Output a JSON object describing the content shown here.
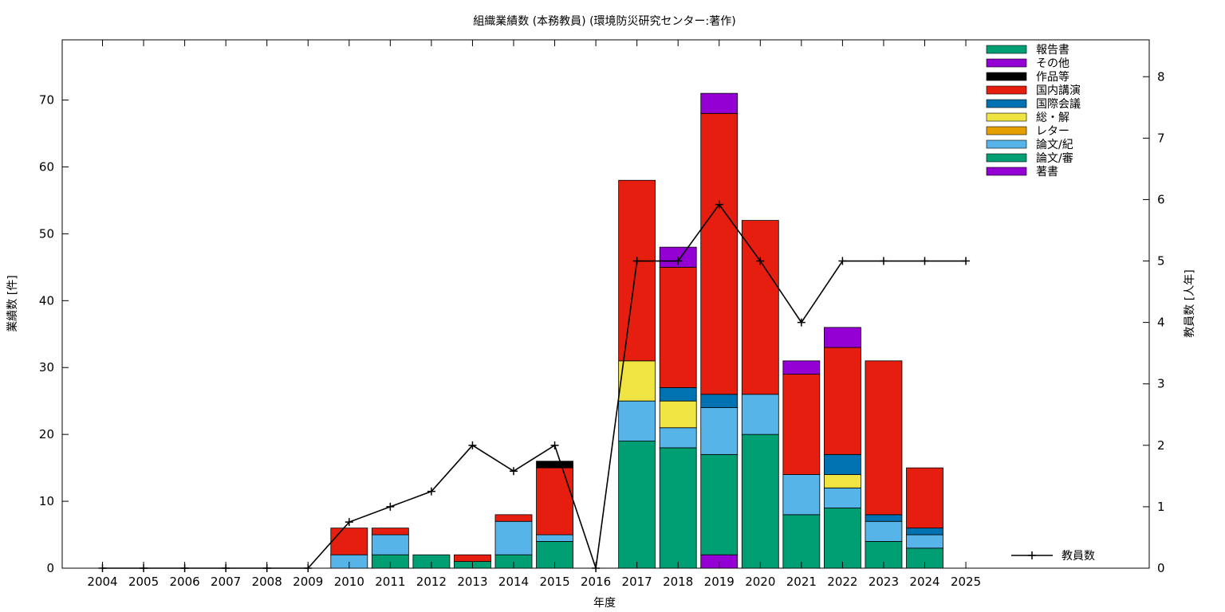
{
  "chart_data": {
    "type": "bar",
    "title": "組織業績数 (本務教員) (環境防災研究センター:著作)",
    "xlabel": "年度",
    "ylabel": "業績数 [件]",
    "y2label": "教員数 [人年]",
    "ylim": [
      0,
      79
    ],
    "y2lim": [
      0,
      8.6
    ],
    "yticks": [
      "0",
      "10",
      "20",
      "30",
      "40",
      "50",
      "60",
      "70"
    ],
    "y2ticks": [
      "0",
      "1",
      "2",
      "3",
      "4",
      "5",
      "6",
      "7",
      "8"
    ],
    "grid": false,
    "legend_position": "top-right",
    "categories": [
      "2004",
      "2005",
      "2006",
      "2007",
      "2008",
      "2009",
      "2010",
      "2011",
      "2012",
      "2013",
      "2014",
      "2015",
      "2016",
      "2017",
      "2018",
      "2019",
      "2020",
      "2021",
      "2022",
      "2023",
      "2024",
      "2025"
    ],
    "series": [
      {
        "name": "著書",
        "color": "#9400d3",
        "values": [
          0,
          0,
          0,
          0,
          0,
          0,
          0,
          0,
          0,
          0,
          0,
          0,
          0,
          0,
          0,
          2,
          0,
          0,
          0,
          0,
          0,
          0
        ]
      },
      {
        "name": "論文/審",
        "color": "#009e73",
        "values": [
          0,
          0,
          0,
          0,
          0,
          0,
          0,
          2,
          2,
          1,
          2,
          4,
          0,
          19,
          18,
          15,
          20,
          8,
          9,
          4,
          3,
          0
        ]
      },
      {
        "name": "論文/紀",
        "color": "#56b4e9",
        "values": [
          0,
          0,
          0,
          0,
          0,
          0,
          2,
          3,
          0,
          0,
          5,
          1,
          0,
          6,
          3,
          7,
          6,
          6,
          3,
          3,
          2,
          0
        ]
      },
      {
        "name": "レター",
        "color": "#e69f00",
        "values": [
          0,
          0,
          0,
          0,
          0,
          0,
          0,
          0,
          0,
          0,
          0,
          0,
          0,
          0,
          0,
          0,
          0,
          0,
          0,
          0,
          0,
          0
        ]
      },
      {
        "name": "総・解",
        "color": "#f0e442",
        "values": [
          0,
          0,
          0,
          0,
          0,
          0,
          0,
          0,
          0,
          0,
          0,
          0,
          0,
          6,
          4,
          0,
          0,
          0,
          2,
          0,
          0,
          0
        ]
      },
      {
        "name": "国際会議",
        "color": "#0072b2",
        "values": [
          0,
          0,
          0,
          0,
          0,
          0,
          0,
          0,
          0,
          0,
          0,
          0,
          0,
          0,
          2,
          2,
          0,
          0,
          3,
          1,
          1,
          0
        ]
      },
      {
        "name": "国内講演",
        "color": "#e51e10",
        "values": [
          0,
          0,
          0,
          0,
          0,
          0,
          4,
          1,
          0,
          1,
          1,
          10,
          0,
          27,
          18,
          42,
          26,
          15,
          16,
          23,
          9,
          0
        ]
      },
      {
        "name": "作品等",
        "color": "#000000",
        "values": [
          0,
          0,
          0,
          0,
          0,
          0,
          0,
          0,
          0,
          0,
          0,
          1,
          0,
          0,
          0,
          0,
          0,
          0,
          0,
          0,
          0,
          0
        ]
      },
      {
        "name": "その他",
        "color": "#9400d3",
        "values": [
          0,
          0,
          0,
          0,
          0,
          0,
          0,
          0,
          0,
          0,
          0,
          0,
          0,
          0,
          3,
          3,
          0,
          2,
          3,
          0,
          0,
          0
        ]
      },
      {
        "name": "報告書",
        "color": "#009e73",
        "values": [
          0,
          0,
          0,
          0,
          0,
          0,
          0,
          0,
          0,
          0,
          0,
          0,
          0,
          0,
          0,
          0,
          0,
          0,
          0,
          0,
          0,
          0
        ]
      }
    ],
    "line_series": {
      "name": "教員数",
      "color": "#000000",
      "axis": "right",
      "values": [
        0,
        0,
        0,
        0,
        0,
        0,
        0.75,
        1,
        1.25,
        2,
        1.58,
        2,
        0,
        5,
        5,
        5.92,
        5,
        4,
        5,
        5,
        5,
        5
      ]
    }
  }
}
